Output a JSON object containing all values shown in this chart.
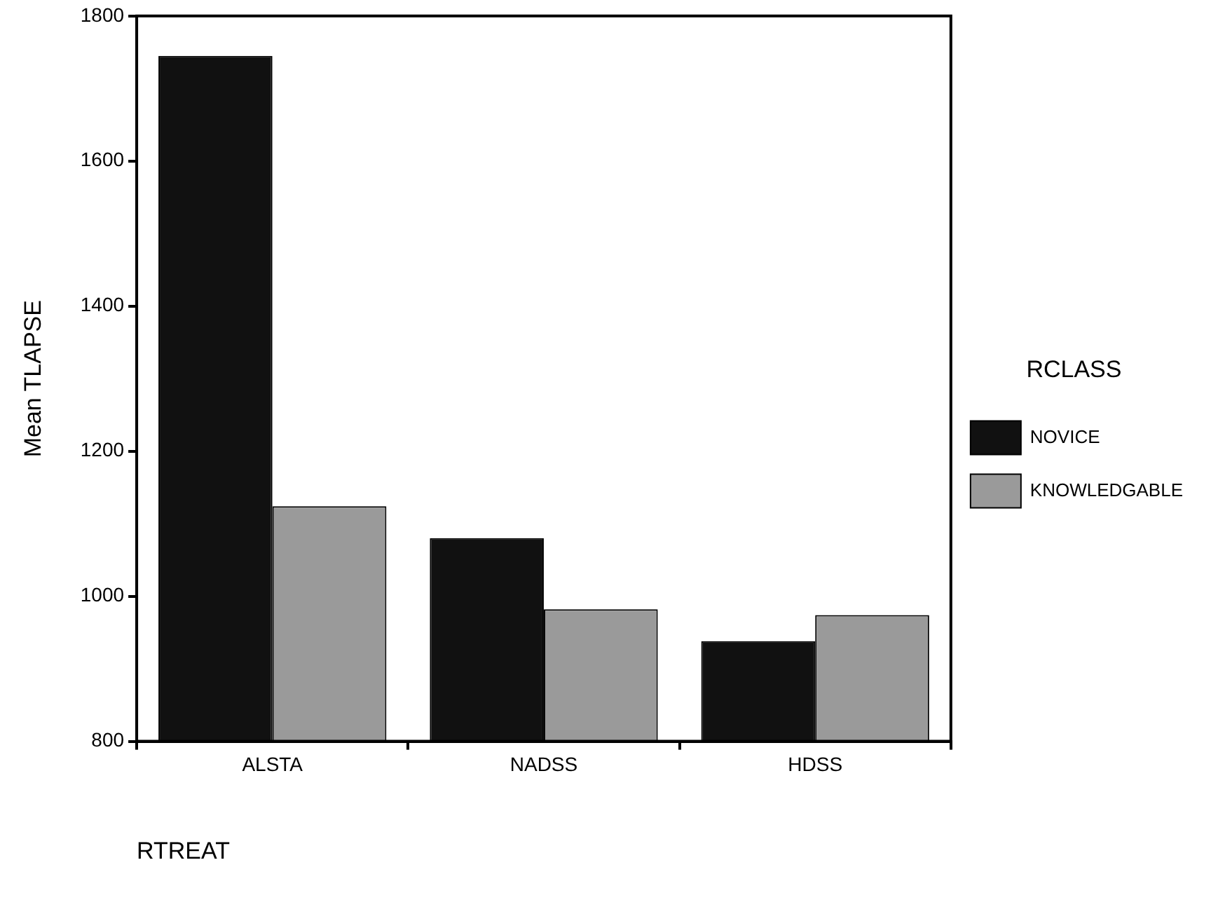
{
  "chart_data": {
    "type": "bar",
    "xlabel": "RTREAT",
    "ylabel": "Mean TLAPSE",
    "legend_title": "RCLASS",
    "categories": [
      "ALSTA",
      "NADSS",
      "HDSS"
    ],
    "series": [
      {
        "name": "NOVICE",
        "color": "#111111",
        "values": [
          1745,
          1080,
          938
        ]
      },
      {
        "name": "KNOWLEDGABLE",
        "color": "#9a9a9a",
        "values": [
          1124,
          982,
          974
        ]
      }
    ],
    "ylim": [
      800,
      1800
    ],
    "yticks": [
      800,
      1000,
      1200,
      1400,
      1600,
      1800
    ],
    "grid": false,
    "legend": "right"
  }
}
